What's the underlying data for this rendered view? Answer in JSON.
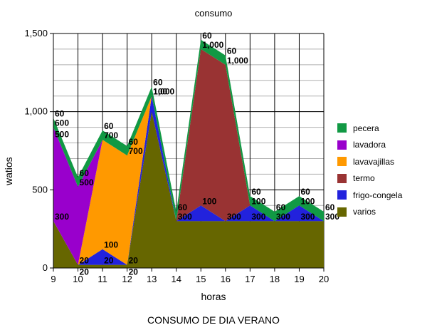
{
  "chart_data": {
    "type": "area",
    "stacked": true,
    "title": "consumo",
    "caption": "CONSUMO DE DIA  VERANO",
    "xlabel": "horas",
    "ylabel": "watios",
    "x": [
      9,
      10,
      11,
      12,
      13,
      14,
      15,
      16,
      17,
      18,
      19,
      20
    ],
    "ylim": [
      0,
      1500
    ],
    "yticks": [
      0,
      500,
      1000,
      1500
    ],
    "ytick_labels": [
      "0",
      "500",
      "1,000",
      "1,500"
    ],
    "grid": true,
    "legend_position": "right",
    "series": [
      {
        "name": "varios",
        "color": "#666600",
        "values": [
          300,
          20,
          20,
          20,
          1000,
          300,
          300,
          300,
          300,
          300,
          300,
          300
        ]
      },
      {
        "name": "frigo-congela",
        "color": "#2222dd",
        "values": [
          0,
          0,
          100,
          0,
          100,
          0,
          100,
          0,
          100,
          0,
          100,
          0
        ]
      },
      {
        "name": "termo",
        "color": "#993333",
        "values": [
          0,
          0,
          0,
          0,
          0,
          0,
          1000,
          1000,
          0,
          0,
          0,
          0
        ]
      },
      {
        "name": "lavavajillas",
        "color": "#ff9900",
        "values": [
          0,
          0,
          700,
          700,
          0,
          0,
          0,
          0,
          0,
          0,
          0,
          0
        ]
      },
      {
        "name": "lavadora",
        "color": "#9900cc",
        "values": [
          600,
          500,
          0,
          0,
          0,
          0,
          0,
          0,
          0,
          0,
          0,
          0
        ]
      },
      {
        "name": "pecera",
        "color": "#119944",
        "values": [
          60,
          60,
          60,
          60,
          60,
          60,
          60,
          60,
          60,
          60,
          60,
          60
        ]
      }
    ],
    "data_labels": [
      {
        "x": 9,
        "stack": 1,
        "text": "300"
      },
      {
        "x": 9,
        "stack": 5,
        "text": "600"
      },
      {
        "x": 9,
        "stack": 5,
        "text": "500"
      },
      {
        "x": 9,
        "stack": 6,
        "text": "60"
      },
      {
        "x": 10,
        "stack": 1,
        "text": "20"
      },
      {
        "x": 10,
        "stack": 1,
        "text": "20"
      },
      {
        "x": 10,
        "stack": 5,
        "text": "500"
      },
      {
        "x": 10,
        "stack": 6,
        "text": "60"
      },
      {
        "x": 11,
        "stack": 1,
        "text": "20"
      },
      {
        "x": 11,
        "stack": 2,
        "text": "100"
      },
      {
        "x": 11,
        "stack": 5,
        "text": "700"
      },
      {
        "x": 11,
        "stack": 6,
        "text": "60"
      },
      {
        "x": 12,
        "stack": 1,
        "text": "20"
      },
      {
        "x": 12,
        "stack": 1,
        "text": "20"
      },
      {
        "x": 12,
        "stack": 5,
        "text": "700"
      },
      {
        "x": 12,
        "stack": 6,
        "text": "60"
      },
      {
        "x": 13,
        "stack": 2,
        "text": "1,000"
      },
      {
        "x": 13,
        "stack": 3,
        "text": "100"
      },
      {
        "x": 13,
        "stack": 6,
        "text": "60"
      },
      {
        "x": 14,
        "stack": 1,
        "text": "300"
      },
      {
        "x": 14,
        "stack": 6,
        "text": "60"
      },
      {
        "x": 15,
        "stack": 2,
        "text": "100"
      },
      {
        "x": 15,
        "stack": 5,
        "text": "1,000"
      },
      {
        "x": 15,
        "stack": 6,
        "text": "60"
      },
      {
        "x": 16,
        "stack": 1,
        "text": "300"
      },
      {
        "x": 16,
        "stack": 5,
        "text": "1,000"
      },
      {
        "x": 16,
        "stack": 6,
        "text": "60"
      },
      {
        "x": 17,
        "stack": 1,
        "text": "300"
      },
      {
        "x": 17,
        "stack": 2,
        "text": "100"
      },
      {
        "x": 17,
        "stack": 6,
        "text": "60"
      },
      {
        "x": 18,
        "stack": 1,
        "text": "300"
      },
      {
        "x": 18,
        "stack": 6,
        "text": "60"
      },
      {
        "x": 19,
        "stack": 1,
        "text": "300"
      },
      {
        "x": 19,
        "stack": 2,
        "text": "100"
      },
      {
        "x": 19,
        "stack": 6,
        "text": "60"
      },
      {
        "x": 20,
        "stack": 1,
        "text": "300"
      },
      {
        "x": 20,
        "stack": 6,
        "text": "60"
      }
    ]
  },
  "legend": {
    "items": [
      {
        "label": "pecera",
        "color": "#119944"
      },
      {
        "label": "lavadora",
        "color": "#9900cc"
      },
      {
        "label": "lavavajillas",
        "color": "#ff9900"
      },
      {
        "label": "termo",
        "color": "#993333"
      },
      {
        "label": "frigo-congela",
        "color": "#2222dd"
      },
      {
        "label": "varios",
        "color": "#666600"
      }
    ]
  }
}
